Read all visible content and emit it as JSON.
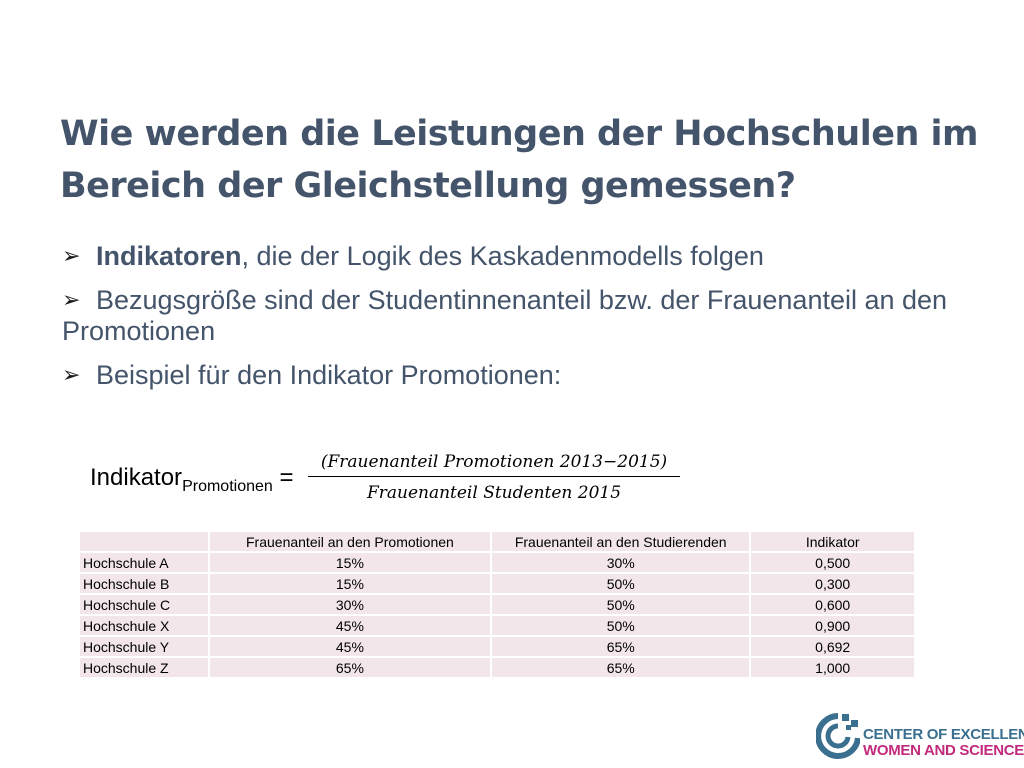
{
  "slide": {
    "title": "Wie werden die Leistungen der Hochschulen im Bereich der Gleichstellung gemessen?",
    "bullets": [
      {
        "bold": "Indikatoren",
        "text": ", die der Logik des Kaskadenmodells folgen"
      },
      {
        "bold": "",
        "text": "Bezugsgröße sind der Studentinnenanteil bzw. der Frauenanteil an den Promotionen"
      },
      {
        "bold": "",
        "text": "Beispiel für den Indikator Promotionen:"
      }
    ],
    "formula": {
      "lhs_main": "Indikator",
      "lhs_sub": "Promotionen",
      "equals": " =",
      "numerator": "(Frauenanteil Promotionen 2013−2015)",
      "denominator": "Frauenanteil Studenten 2015"
    }
  },
  "table": {
    "headers": [
      "",
      "Frauenanteil an den Promotionen",
      "Frauenanteil an den Studierenden",
      "Indikator"
    ],
    "rows": [
      [
        "Hochschule A",
        "15%",
        "30%",
        "0,500"
      ],
      [
        "Hochschule B",
        "15%",
        "50%",
        "0,300"
      ],
      [
        "Hochschule C",
        "30%",
        "50%",
        "0,600"
      ],
      [
        "Hochschule X",
        "45%",
        "50%",
        "0,900"
      ],
      [
        "Hochschule Y",
        "45%",
        "65%",
        "0,692"
      ],
      [
        "Hochschule Z",
        "65%",
        "65%",
        "1,000"
      ]
    ]
  },
  "logo": {
    "line1": "CENTER OF EXCELLENCE",
    "line2": "WOMEN AND SCIENCE",
    "icon": "cews-circle-logo-icon"
  },
  "colors": {
    "title": "#44546a",
    "table_cell": "#f2e6ea",
    "logo_blue": "#3a6f8f",
    "logo_magenta": "#c22a7c"
  }
}
